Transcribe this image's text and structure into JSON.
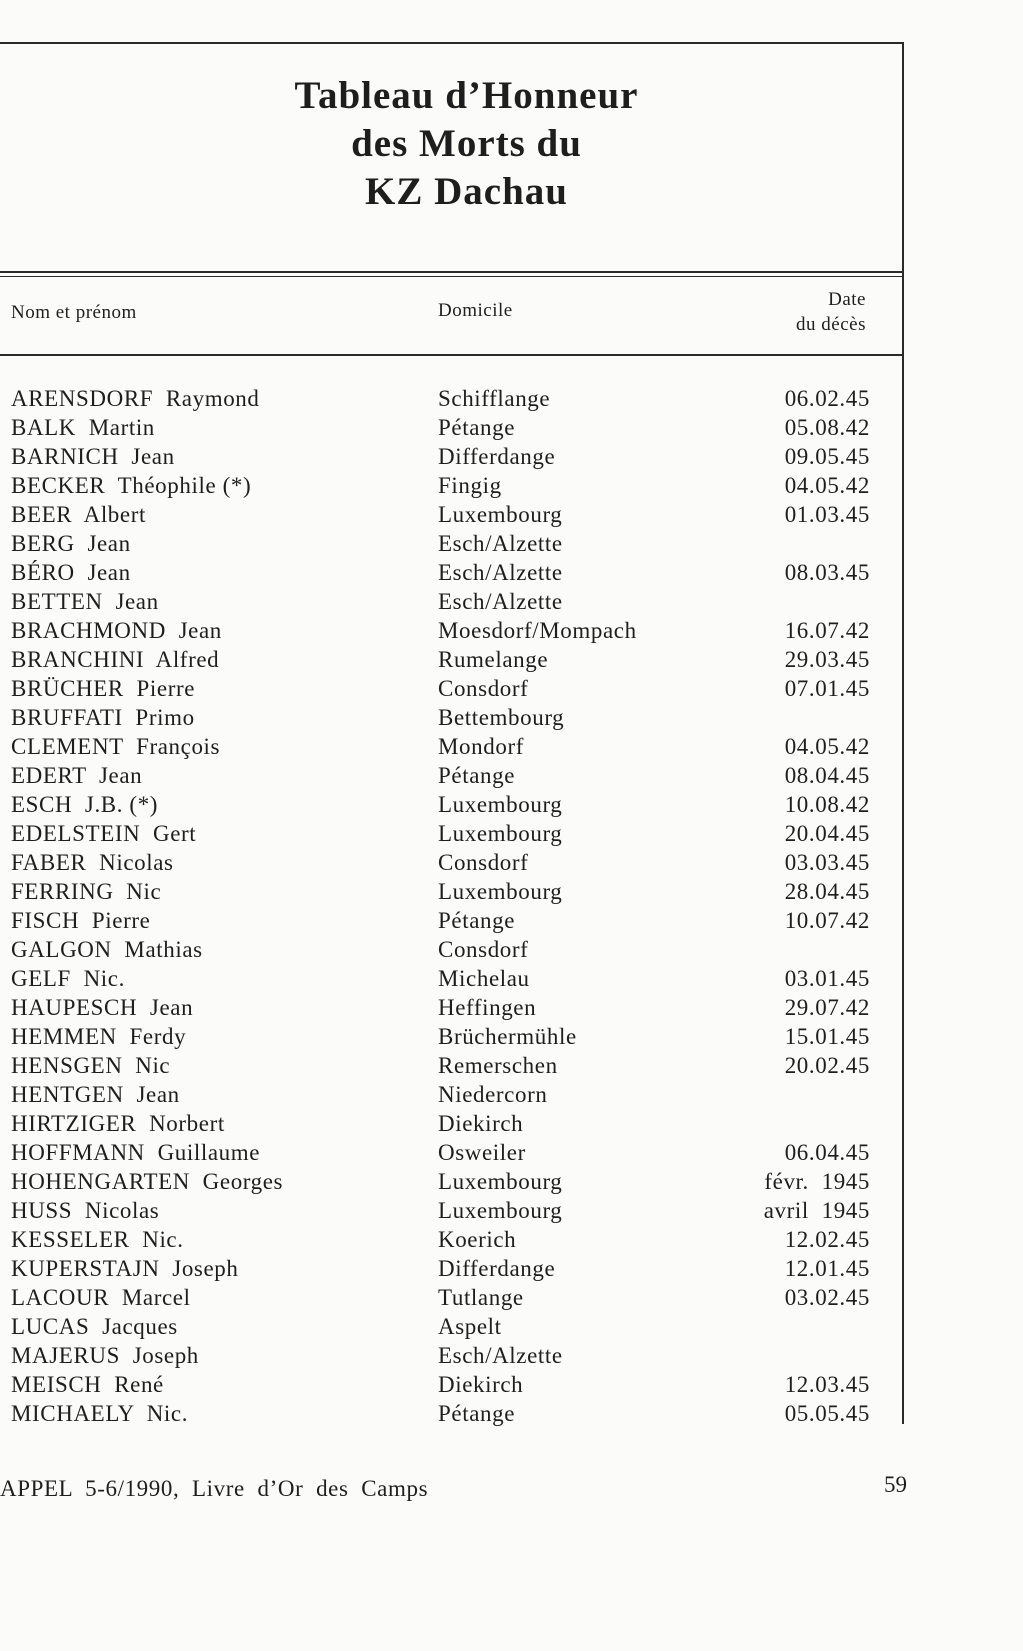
{
  "title": [
    "Tableau d’Honneur",
    "des Morts du",
    "KZ Dachau"
  ],
  "columns": {
    "name": "Nom et prénom",
    "domicile": "Domicile",
    "date_line1": "Date",
    "date_line2": "du décès"
  },
  "rows": [
    {
      "name": "ARENSDORF  Raymond",
      "domicile": "Schifflange",
      "date": "06.02.45"
    },
    {
      "name": "BALK  Martin",
      "domicile": "Pétange",
      "date": "05.08.42"
    },
    {
      "name": "BARNICH  Jean",
      "domicile": "Differdange",
      "date": "09.05.45"
    },
    {
      "name": "BECKER  Théophile (*)",
      "domicile": "Fingig",
      "date": "04.05.42"
    },
    {
      "name": "BEER  Albert",
      "domicile": "Luxembourg",
      "date": "01.03.45"
    },
    {
      "name": "BERG  Jean",
      "domicile": "Esch/Alzette",
      "date": ""
    },
    {
      "name": "BÉRO  Jean",
      "domicile": "Esch/Alzette",
      "date": "08.03.45"
    },
    {
      "name": "BETTEN  Jean",
      "domicile": "Esch/Alzette",
      "date": ""
    },
    {
      "name": "BRACHMOND  Jean",
      "domicile": "Moesdorf/Mompach",
      "date": "16.07.42"
    },
    {
      "name": "BRANCHINI  Alfred",
      "domicile": "Rumelange",
      "date": "29.03.45"
    },
    {
      "name": "BRÜCHER  Pierre",
      "domicile": "Consdorf",
      "date": "07.01.45"
    },
    {
      "name": "BRUFFATI  Primo",
      "domicile": "Bettembourg",
      "date": ""
    },
    {
      "name": "CLEMENT  François",
      "domicile": "Mondorf",
      "date": "04.05.42"
    },
    {
      "name": "EDERT  Jean",
      "domicile": "Pétange",
      "date": "08.04.45"
    },
    {
      "name": "ESCH  J.B. (*)",
      "domicile": "Luxembourg",
      "date": "10.08.42"
    },
    {
      "name": "EDELSTEIN  Gert",
      "domicile": "Luxembourg",
      "date": "20.04.45"
    },
    {
      "name": "FABER  Nicolas",
      "domicile": "Consdorf",
      "date": "03.03.45"
    },
    {
      "name": "FERRING  Nic",
      "domicile": "Luxembourg",
      "date": "28.04.45"
    },
    {
      "name": "FISCH  Pierre",
      "domicile": "Pétange",
      "date": "10.07.42"
    },
    {
      "name": "GALGON  Mathias",
      "domicile": "Consdorf",
      "date": ""
    },
    {
      "name": "GELF  Nic.",
      "domicile": "Michelau",
      "date": "03.01.45"
    },
    {
      "name": "HAUPESCH  Jean",
      "domicile": "Heffingen",
      "date": "29.07.42"
    },
    {
      "name": "HEMMEN  Ferdy",
      "domicile": "Brüchermühle",
      "date": "15.01.45"
    },
    {
      "name": "HENSGEN  Nic",
      "domicile": "Remerschen",
      "date": "20.02.45"
    },
    {
      "name": "HENTGEN  Jean",
      "domicile": "Niedercorn",
      "date": ""
    },
    {
      "name": "HIRTZIGER  Norbert",
      "domicile": "Diekirch",
      "date": ""
    },
    {
      "name": "HOFFMANN  Guillaume",
      "domicile": "Osweiler",
      "date": "06.04.45"
    },
    {
      "name": "HOHENGARTEN  Georges",
      "domicile": "Luxembourg",
      "date": "févr.  1945"
    },
    {
      "name": "HUSS  Nicolas",
      "domicile": "Luxembourg",
      "date": "avril  1945"
    },
    {
      "name": "KESSELER  Nic.",
      "domicile": "Koerich",
      "date": "12.02.45"
    },
    {
      "name": "KUPERSTAJN  Joseph",
      "domicile": "Differdange",
      "date": "12.01.45"
    },
    {
      "name": "LACOUR  Marcel",
      "domicile": "Tutlange",
      "date": "03.02.45"
    },
    {
      "name": "LUCAS  Jacques",
      "domicile": "Aspelt",
      "date": ""
    },
    {
      "name": "MAJERUS  Joseph",
      "domicile": "Esch/Alzette",
      "date": ""
    },
    {
      "name": "MEISCH  René",
      "domicile": "Diekirch",
      "date": "12.03.45"
    },
    {
      "name": "MICHAELY  Nic.",
      "domicile": "Pétange",
      "date": "05.05.45"
    }
  ],
  "footer": {
    "source": "APPEL  5-6/1990,  Livre  d’Or  des  Camps",
    "page_number": "59"
  }
}
